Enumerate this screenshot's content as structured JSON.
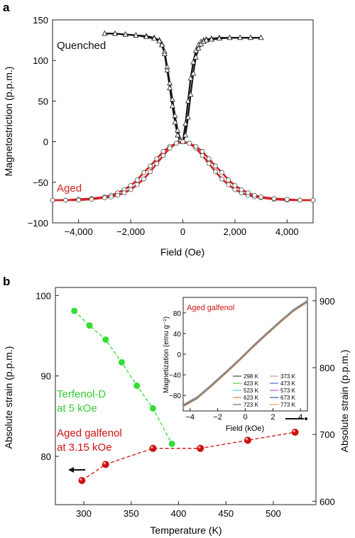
{
  "panel_a_label": "a",
  "panel_b_label": "b",
  "colors": {
    "quenched": "#111111",
    "aged": "#d42020",
    "terfenol": "#33dd33",
    "galfenol": "#cc1111"
  },
  "chart_data": [
    {
      "type": "line",
      "panel": "a",
      "xlabel": "Field (Oe)",
      "ylabel": "Magnetostriction (p.p.m.)",
      "xlim": [
        -5000,
        5000
      ],
      "ylim": [
        -100,
        150
      ],
      "xticks": [
        -4000,
        -2000,
        0,
        2000,
        4000
      ],
      "xtick_labels": [
        "−4,000",
        "−2,000",
        "0",
        "2,000",
        "4,000"
      ],
      "yticks": [
        -100,
        -50,
        0,
        50,
        100,
        150
      ],
      "ytick_labels": [
        "−100",
        "−50",
        "0",
        "50",
        "100",
        "150"
      ],
      "annotations": [
        {
          "text": "Quenched",
          "color": "#111111"
        },
        {
          "text": "Aged",
          "color": "#d42020"
        }
      ],
      "series": [
        {
          "name": "Quenched",
          "marker": "triangle",
          "branches": [
            {
              "x": [
                -3000,
                -2600,
                -2200,
                -1800,
                -1400,
                -1100,
                -900,
                -800,
                -700,
                -600,
                -500,
                -400,
                -300,
                -200,
                -100,
                0,
                100,
                200,
                300,
                400,
                500,
                600,
                700,
                800,
                900,
                1100,
                1400,
                1800,
                2200,
                2600,
                3000
              ],
              "y": [
                133,
                133,
                132,
                131,
                130,
                128,
                125,
                120,
                111,
                92,
                72,
                52,
                32,
                14,
                3,
                0,
                22,
                50,
                78,
                98,
                112,
                119,
                123,
                125,
                126,
                127,
                128,
                128,
                128,
                128,
                128
              ]
            },
            {
              "x": [
                -3000,
                -2600,
                -2200,
                -1800,
                -1400,
                -1100,
                -900,
                -800,
                -700,
                -600,
                -500,
                -400,
                -300,
                -200,
                -100,
                0,
                100,
                200,
                300,
                400,
                500,
                600,
                700,
                800,
                900,
                1100,
                1400,
                1800,
                2200,
                2600,
                3000
              ],
              "y": [
                133,
                133,
                132,
                131,
                129,
                127,
                124,
                119,
                108,
                88,
                66,
                44,
                24,
                8,
                1,
                0,
                8,
                30,
                58,
                84,
                104,
                115,
                120,
                123,
                125,
                126,
                127,
                128,
                128,
                128,
                128
              ]
            }
          ]
        },
        {
          "name": "Aged",
          "marker": "circle",
          "branches": [
            {
              "x": [
                -5000,
                -4500,
                -4000,
                -3500,
                -3000,
                -2750,
                -2500,
                -2250,
                -2000,
                -1750,
                -1500,
                -1250,
                -1000,
                -750,
                -500,
                -250,
                0,
                250,
                500,
                750,
                1000,
                1250,
                1500,
                1750,
                2000,
                2250,
                2500,
                2750,
                3000,
                3500,
                4000,
                4500,
                5000
              ],
              "y": [
                -72,
                -72,
                -71,
                -70,
                -68,
                -66,
                -63,
                -59,
                -54,
                -47,
                -38,
                -30,
                -21,
                -12,
                -6,
                -2,
                0,
                -2,
                -8,
                -17,
                -27,
                -37,
                -46,
                -53,
                -59,
                -63,
                -66,
                -68,
                -69,
                -71,
                -72,
                -72,
                -72
              ]
            },
            {
              "x": [
                -5000,
                -4500,
                -4000,
                -3500,
                -3000,
                -2750,
                -2500,
                -2250,
                -2000,
                -1750,
                -1500,
                -1250,
                -1000,
                -750,
                -500,
                -250,
                0,
                250,
                500,
                750,
                1000,
                1250,
                1500,
                1750,
                2000,
                2250,
                2500,
                2750,
                3000,
                3500,
                4000,
                4500,
                5000
              ],
              "y": [
                -72,
                -72,
                -72,
                -71,
                -69,
                -68,
                -66,
                -63,
                -59,
                -53,
                -46,
                -37,
                -27,
                -17,
                -8,
                -2,
                0,
                -2,
                -6,
                -12,
                -21,
                -30,
                -38,
                -47,
                -54,
                -59,
                -63,
                -66,
                -68,
                -70,
                -71,
                -72,
                -72
              ]
            }
          ]
        }
      ]
    },
    {
      "type": "scatter",
      "panel": "b",
      "xlabel": "Temperature (K)",
      "ylabel": "Absolute strain (p.p.m.)",
      "y2label": "Absolute strain (p.p.m.)",
      "xlim": [
        270,
        545
      ],
      "ylim": [
        74,
        101
      ],
      "y2lim": [
        595,
        920
      ],
      "xticks": [
        300,
        350,
        400,
        450,
        500
      ],
      "xtick_labels": [
        "300",
        "350",
        "400",
        "450",
        "500"
      ],
      "yticks": [
        80,
        90,
        100
      ],
      "ytick_labels": [
        "80",
        "90",
        "100"
      ],
      "y2ticks": [
        600,
        700,
        800,
        900
      ],
      "y2tick_labels": [
        "600",
        "700",
        "800",
        "900"
      ],
      "series": [
        {
          "name": "Terfenol-D\nat 5 kOe",
          "label_lines": [
            "Terfenol-D",
            "at 5 kOe"
          ],
          "axis": "right",
          "color": "#33dd33",
          "x": [
            290,
            306,
            323,
            340,
            356,
            373,
            393
          ],
          "y": [
            885,
            863,
            842,
            808,
            773,
            739,
            686
          ]
        },
        {
          "name": "Aged galfenol\nat 3.15 kOe",
          "label_lines": [
            "Aged galfenol",
            "at 3.15 kOe"
          ],
          "axis": "left",
          "color": "#cc1111",
          "x": [
            298,
            323,
            373,
            423,
            473,
            523
          ],
          "y": [
            77,
            79,
            81,
            81,
            82,
            83
          ]
        }
      ],
      "inset": {
        "type": "line",
        "title": "Aged galfenol",
        "xlabel": "Field (kOe)",
        "ylabel": "Magnetization (emu g⁻¹)",
        "xlim": [
          -4.5,
          4.5
        ],
        "ylim": [
          -110,
          110
        ],
        "xticks": [
          -4,
          -2,
          0,
          2,
          4
        ],
        "xtick_labels": [
          "−4",
          "−2",
          "0",
          "2",
          "4"
        ],
        "yticks": [
          -80,
          -40,
          0,
          40,
          80
        ],
        "ytick_labels": [
          "−80",
          "−40",
          "0",
          "40",
          "80"
        ],
        "legend": [
          {
            "name": "298 K",
            "color": "#444444"
          },
          {
            "name": "373 K",
            "color": "#ee8888"
          },
          {
            "name": "423 K",
            "color": "#55cc55"
          },
          {
            "name": "473 K",
            "color": "#5566cc"
          },
          {
            "name": "523 K",
            "color": "#55dddd"
          },
          {
            "name": "573 K",
            "color": "#cc55cc"
          },
          {
            "name": "623 K",
            "color": "#cc8833"
          },
          {
            "name": "673 K",
            "color": "#3355aa"
          },
          {
            "name": "723 K",
            "color": "#885599"
          },
          {
            "name": "773 K",
            "color": "#ddaa44"
          }
        ],
        "x": [
          -4.5,
          -3.5,
          -2.5,
          -1.5,
          -0.5,
          0.5,
          1.5,
          2.5,
          3.5,
          4.5
        ],
        "y": [
          -100,
          -85,
          -62,
          -38,
          -13,
          13,
          38,
          62,
          85,
          102
        ]
      }
    }
  ]
}
